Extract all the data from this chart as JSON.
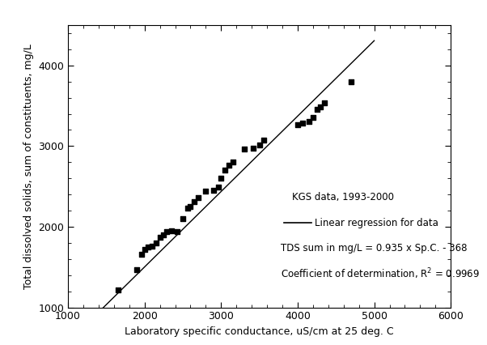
{
  "scatter_x": [
    1650,
    1900,
    1960,
    2000,
    2050,
    2100,
    2150,
    2200,
    2250,
    2290,
    2350,
    2430,
    2500,
    2560,
    2600,
    2650,
    2700,
    2800,
    2900,
    2960,
    3000,
    3050,
    3100,
    3150,
    3300,
    3420,
    3500,
    3560,
    4000,
    4060,
    4150,
    4200,
    4250,
    4300,
    4350,
    4700
  ],
  "scatter_y": [
    1220,
    1470,
    1660,
    1720,
    1750,
    1760,
    1800,
    1870,
    1900,
    1940,
    1950,
    1940,
    2100,
    2230,
    2250,
    2310,
    2360,
    2440,
    2450,
    2490,
    2600,
    2700,
    2760,
    2800,
    2960,
    2970,
    3010,
    3070,
    3260,
    3280,
    3310,
    3360,
    3460,
    3490,
    3540,
    3800
  ],
  "slope": 0.935,
  "intercept": -368,
  "line_x_start": 1100,
  "line_x_end": 5000,
  "regression_label": "Linear regression for data",
  "data_label": "KGS data, 1993-2000",
  "equation_label": "TDS sum in mg/L = 0.935 x Sp.C. - 368",
  "r2_prefix": "Coefficient of determination, R",
  "r2_sup": "2",
  "r2_suffix": " = 0.9969",
  "xlabel": "Laboratory specific conductance, uS/cm at 25 deg. C",
  "ylabel": "Total dissolved solids, sum of constituents, mg/L",
  "xlim": [
    1000,
    6000
  ],
  "ylim": [
    1000,
    4500
  ],
  "xticks": [
    1000,
    2000,
    3000,
    4000,
    5000,
    6000
  ],
  "yticks": [
    1000,
    2000,
    3000,
    4000
  ],
  "marker_color": "black",
  "line_color": "black",
  "bg_color": "white",
  "title_bar_color": "#111111",
  "font_family": "DejaVu Sans",
  "fontsize": 9
}
